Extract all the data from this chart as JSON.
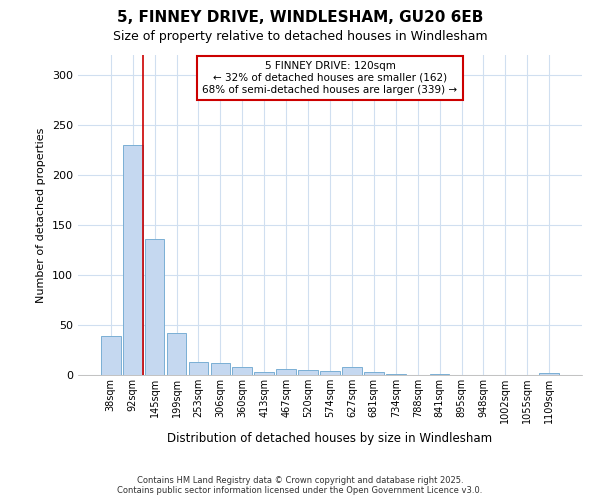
{
  "title_line1": "5, FINNEY DRIVE, WINDLESHAM, GU20 6EB",
  "title_line2": "Size of property relative to detached houses in Windlesham",
  "xlabel": "Distribution of detached houses by size in Windlesham",
  "ylabel": "Number of detached properties",
  "bar_labels": [
    "38sqm",
    "92sqm",
    "145sqm",
    "199sqm",
    "253sqm",
    "306sqm",
    "360sqm",
    "413sqm",
    "467sqm",
    "520sqm",
    "574sqm",
    "627sqm",
    "681sqm",
    "734sqm",
    "788sqm",
    "841sqm",
    "895sqm",
    "948sqm",
    "1002sqm",
    "1055sqm",
    "1109sqm"
  ],
  "bar_values": [
    39,
    230,
    136,
    42,
    13,
    12,
    8,
    3,
    6,
    5,
    4,
    8,
    3,
    1,
    0,
    1,
    0,
    0,
    0,
    0,
    2
  ],
  "bar_color": "#c5d8f0",
  "bar_edge_color": "#7aafd4",
  "vline_color": "#cc0000",
  "annotation_title": "5 FINNEY DRIVE: 120sqm",
  "annotation_line1": "← 32% of detached houses are smaller (162)",
  "annotation_line2": "68% of semi-detached houses are larger (339) →",
  "annotation_box_color": "#cc0000",
  "ylim": [
    0,
    320
  ],
  "yticks": [
    0,
    50,
    100,
    150,
    200,
    250,
    300
  ],
  "footer_line1": "Contains HM Land Registry data © Crown copyright and database right 2025.",
  "footer_line2": "Contains public sector information licensed under the Open Government Licence v3.0.",
  "bg_color": "#ffffff",
  "plot_bg_color": "#ffffff",
  "grid_color": "#d0dff0"
}
